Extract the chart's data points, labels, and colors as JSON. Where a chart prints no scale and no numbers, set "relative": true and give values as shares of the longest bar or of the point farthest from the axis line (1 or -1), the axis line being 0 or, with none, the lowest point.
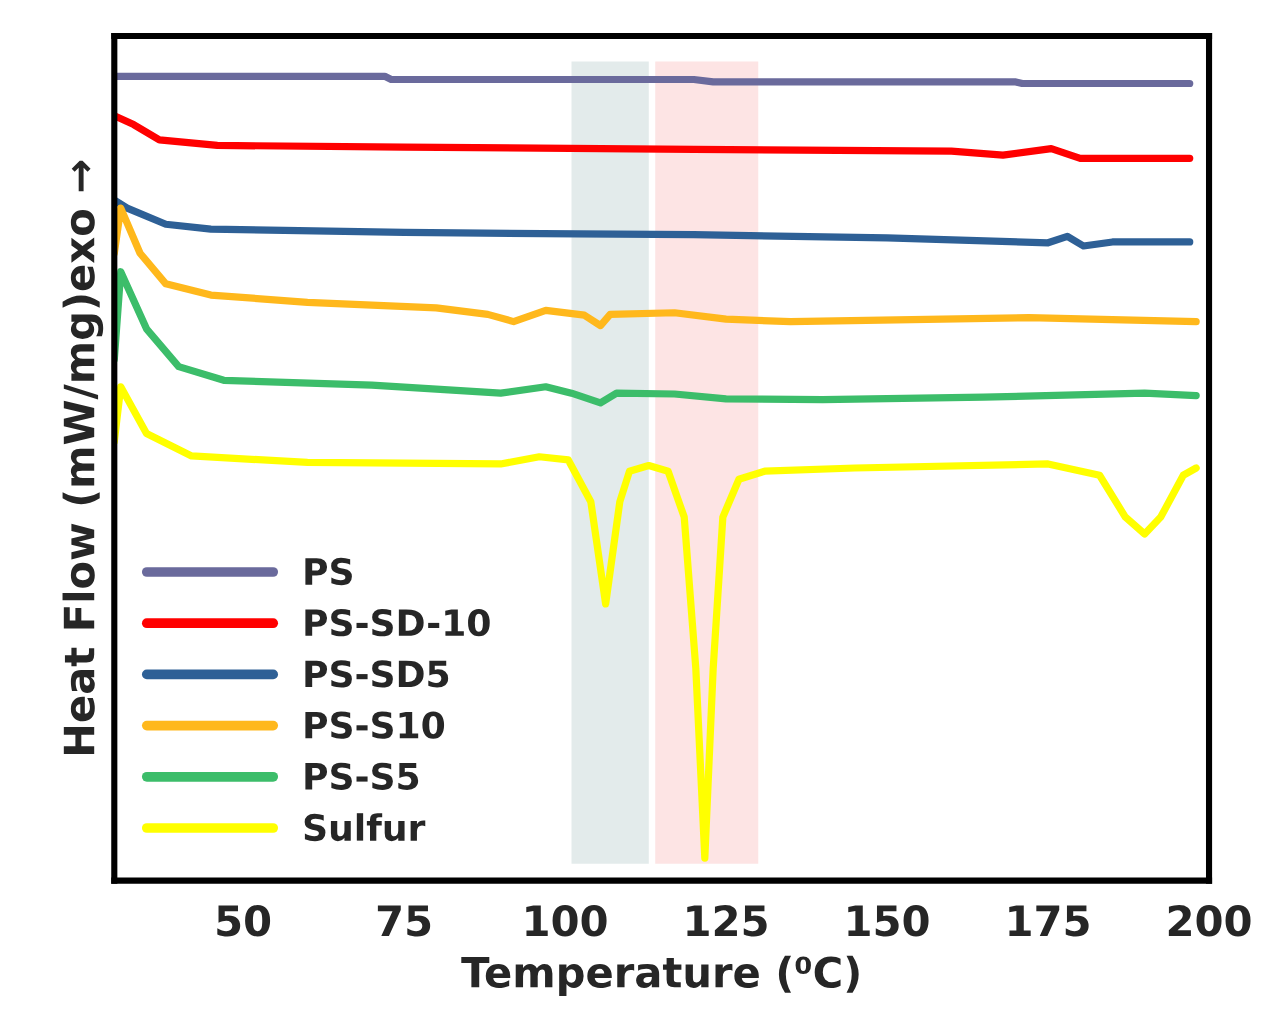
{
  "chart_data": {
    "type": "line",
    "relative": true,
    "xlabel": "Temperature (⁰C)",
    "ylabel": "Heat Flow (mW/mg)exo →",
    "xlim": [
      30,
      200
    ],
    "xticks": [
      50,
      75,
      100,
      125,
      150,
      175,
      200
    ],
    "tick_labels": "x",
    "grid": false,
    "legend": "bottom left",
    "marker": "none",
    "line_style": "solid",
    "bands": [
      {
        "axis": "x",
        "from": 101,
        "to": 113,
        "color": "#e3ebeb"
      },
      {
        "axis": "x",
        "from": 114,
        "to": 130,
        "color": "#fde4e4"
      }
    ],
    "series": [
      {
        "name": "PS",
        "color": "#6a6a9c",
        "x": [
          30,
          72,
          73,
          120,
          123,
          170,
          171,
          197
        ],
        "values": [
          1.0,
          1.0,
          0.996,
          0.996,
          0.993,
          0.993,
          0.991,
          0.991
        ]
      },
      {
        "name": "PS-SD-10",
        "color": "#ff0000",
        "x": [
          30,
          33,
          37,
          46,
          75,
          120,
          160,
          168,
          175.5,
          180,
          197
        ],
        "values": [
          0.951,
          0.94,
          0.921,
          0.914,
          0.912,
          0.909,
          0.907,
          0.902,
          0.91,
          0.898,
          0.898
        ]
      },
      {
        "name": "PS-SD5",
        "color": "#2e6096",
        "x": [
          30,
          32,
          38,
          45,
          75,
          102,
          120,
          150,
          175,
          178,
          180.5,
          185,
          197
        ],
        "values": [
          0.846,
          0.836,
          0.816,
          0.81,
          0.806,
          0.804,
          0.803,
          0.799,
          0.793,
          0.801,
          0.789,
          0.794,
          0.794
        ]
      },
      {
        "name": "PS-S10",
        "color": "#ffb81c",
        "x": [
          30,
          31,
          34,
          38,
          45,
          60,
          80,
          88,
          92,
          97,
          103,
          105.5,
          107,
          117,
          125,
          135,
          172,
          198
        ],
        "values": [
          0.78,
          0.836,
          0.78,
          0.742,
          0.728,
          0.719,
          0.712,
          0.704,
          0.695,
          0.709,
          0.703,
          0.69,
          0.704,
          0.706,
          0.698,
          0.695,
          0.7,
          0.695
        ]
      },
      {
        "name": "PS-S5",
        "color": "#3cbd6a",
        "x": [
          30,
          31,
          35,
          40,
          47,
          70,
          90,
          97,
          101,
          105.5,
          108,
          117,
          125,
          140,
          165,
          190,
          198
        ],
        "values": [
          0.648,
          0.757,
          0.686,
          0.639,
          0.622,
          0.616,
          0.606,
          0.614,
          0.606,
          0.594,
          0.606,
          0.605,
          0.599,
          0.598,
          0.601,
          0.606,
          0.603
        ]
      },
      {
        "name": "Sulfur",
        "color": "#ffff00",
        "x": [
          30,
          31,
          35,
          42,
          60,
          90,
          96,
          100.5,
          104,
          106.3,
          108.5,
          110,
          113,
          116,
          118.5,
          120.3,
          121.7,
          123,
          124.5,
          127,
          131,
          145,
          175,
          183,
          187,
          190,
          192.5,
          196,
          198
        ],
        "values": [
          0.546,
          0.614,
          0.556,
          0.528,
          0.52,
          0.518,
          0.527,
          0.523,
          0.471,
          0.344,
          0.471,
          0.509,
          0.516,
          0.509,
          0.452,
          0.264,
          0.028,
          0.264,
          0.452,
          0.499,
          0.509,
          0.513,
          0.518,
          0.504,
          0.452,
          0.431,
          0.452,
          0.504,
          0.513
        ]
      }
    ]
  }
}
